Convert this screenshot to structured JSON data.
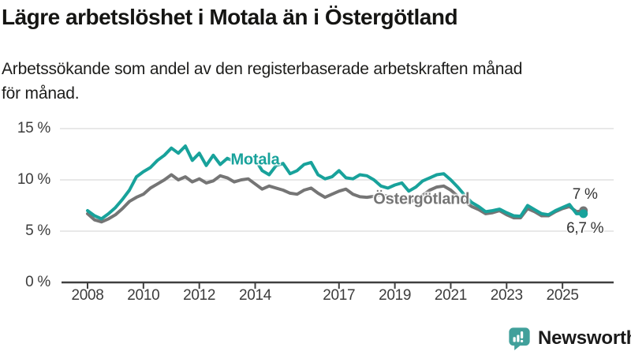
{
  "header": {
    "title": "Lägre arbetslöshet i Motala än i Östergötland",
    "subtitle_lines": [
      "Arbetssökande som andel av den registerbaserade arbetskraften månad",
      "för månad."
    ]
  },
  "footer": {
    "brand": "Newsworthy",
    "brand_color": "#41A09B",
    "logo_icon": "bar-chart-speech-bubble-icon"
  },
  "colors": {
    "motala": "#18A29B",
    "ostergotland": "#757575",
    "grid": "#D9D9D9",
    "axis": "#3F3F3F",
    "tick_text": "#3C3C3C",
    "annotation_text": "#333333"
  },
  "chart_data": {
    "type": "line",
    "title": "Lägre arbetslöshet i Motala än i Östergötland",
    "subtitle": "Arbetssökande som andel av den registerbaserade arbetskraften månad för månad.",
    "xlabel": "",
    "ylabel": "",
    "ylim": [
      0,
      15
    ],
    "xlim": [
      2007.7,
      2026.3
    ],
    "grid": "horizontal",
    "legend_position": "inline-labels",
    "x_ticks": [
      2008,
      2010,
      2012,
      2014,
      2017,
      2019,
      2021,
      2023,
      2025
    ],
    "y_ticks": [
      {
        "value": 0,
        "label": "0 %"
      },
      {
        "value": 5,
        "label": "5 %"
      },
      {
        "value": 10,
        "label": "10 %"
      },
      {
        "value": 15,
        "label": "15 %"
      }
    ],
    "series": [
      {
        "name": "Motala",
        "color": "#18A29B",
        "end_value": 6.7,
        "end_label": "6,7 %",
        "points": [
          [
            2008.0,
            7.0
          ],
          [
            2008.25,
            6.5
          ],
          [
            2008.5,
            6.2
          ],
          [
            2008.75,
            6.7
          ],
          [
            2009.0,
            7.3
          ],
          [
            2009.25,
            8.1
          ],
          [
            2009.5,
            9.0
          ],
          [
            2009.75,
            10.3
          ],
          [
            2010.0,
            10.8
          ],
          [
            2010.25,
            11.2
          ],
          [
            2010.5,
            11.9
          ],
          [
            2010.75,
            12.4
          ],
          [
            2011.0,
            13.1
          ],
          [
            2011.25,
            12.6
          ],
          [
            2011.5,
            13.3
          ],
          [
            2011.75,
            11.9
          ],
          [
            2012.0,
            12.6
          ],
          [
            2012.25,
            11.4
          ],
          [
            2012.5,
            12.4
          ],
          [
            2012.75,
            11.5
          ],
          [
            2013.0,
            12.1
          ],
          [
            2013.25,
            11.8
          ],
          [
            2013.5,
            12.3
          ],
          [
            2013.75,
            11.7
          ],
          [
            2014.0,
            12.0
          ],
          [
            2014.25,
            10.9
          ],
          [
            2014.5,
            10.5
          ],
          [
            2014.75,
            11.4
          ],
          [
            2015.0,
            11.6
          ],
          [
            2015.25,
            10.6
          ],
          [
            2015.5,
            10.9
          ],
          [
            2015.75,
            11.5
          ],
          [
            2016.0,
            11.7
          ],
          [
            2016.25,
            10.5
          ],
          [
            2016.5,
            10.1
          ],
          [
            2016.75,
            10.3
          ],
          [
            2017.0,
            10.9
          ],
          [
            2017.25,
            10.2
          ],
          [
            2017.5,
            10.1
          ],
          [
            2017.75,
            10.5
          ],
          [
            2018.0,
            10.4
          ],
          [
            2018.25,
            10.0
          ],
          [
            2018.5,
            9.4
          ],
          [
            2018.75,
            9.2
          ],
          [
            2019.0,
            9.5
          ],
          [
            2019.25,
            9.7
          ],
          [
            2019.5,
            8.9
          ],
          [
            2019.75,
            9.3
          ],
          [
            2020.0,
            9.9
          ],
          [
            2020.25,
            10.2
          ],
          [
            2020.5,
            10.5
          ],
          [
            2020.75,
            10.6
          ],
          [
            2021.0,
            10.0
          ],
          [
            2021.25,
            9.3
          ],
          [
            2021.5,
            8.5
          ],
          [
            2021.75,
            7.8
          ],
          [
            2022.0,
            7.4
          ],
          [
            2022.25,
            6.9
          ],
          [
            2022.5,
            7.0
          ],
          [
            2022.75,
            7.15
          ],
          [
            2023.0,
            6.8
          ],
          [
            2023.25,
            6.5
          ],
          [
            2023.5,
            6.45
          ],
          [
            2023.75,
            7.5
          ],
          [
            2024.0,
            7.1
          ],
          [
            2024.25,
            6.7
          ],
          [
            2024.5,
            6.6
          ],
          [
            2024.75,
            7.0
          ],
          [
            2025.0,
            7.3
          ],
          [
            2025.25,
            7.6
          ],
          [
            2025.5,
            6.7
          ],
          [
            2025.75,
            6.7
          ]
        ]
      },
      {
        "name": "Östergötland",
        "color": "#757575",
        "end_value": 7.0,
        "end_label": "7 %",
        "points": [
          [
            2008.0,
            6.7
          ],
          [
            2008.25,
            6.1
          ],
          [
            2008.5,
            5.9
          ],
          [
            2008.75,
            6.2
          ],
          [
            2009.0,
            6.6
          ],
          [
            2009.25,
            7.2
          ],
          [
            2009.5,
            7.9
          ],
          [
            2009.75,
            8.3
          ],
          [
            2010.0,
            8.6
          ],
          [
            2010.25,
            9.2
          ],
          [
            2010.5,
            9.6
          ],
          [
            2010.75,
            10.0
          ],
          [
            2011.0,
            10.5
          ],
          [
            2011.25,
            10.0
          ],
          [
            2011.5,
            10.3
          ],
          [
            2011.75,
            9.8
          ],
          [
            2012.0,
            10.1
          ],
          [
            2012.25,
            9.7
          ],
          [
            2012.5,
            9.9
          ],
          [
            2012.75,
            10.4
          ],
          [
            2013.0,
            10.2
          ],
          [
            2013.25,
            9.8
          ],
          [
            2013.5,
            10.0
          ],
          [
            2013.75,
            10.1
          ],
          [
            2014.0,
            9.6
          ],
          [
            2014.25,
            9.1
          ],
          [
            2014.5,
            9.4
          ],
          [
            2014.75,
            9.2
          ],
          [
            2015.0,
            9.0
          ],
          [
            2015.25,
            8.7
          ],
          [
            2015.5,
            8.6
          ],
          [
            2015.75,
            9.0
          ],
          [
            2016.0,
            9.2
          ],
          [
            2016.25,
            8.7
          ],
          [
            2016.5,
            8.3
          ],
          [
            2016.75,
            8.6
          ],
          [
            2017.0,
            8.9
          ],
          [
            2017.25,
            9.1
          ],
          [
            2017.5,
            8.6
          ],
          [
            2017.75,
            8.35
          ],
          [
            2018.0,
            8.3
          ],
          [
            2018.25,
            8.4
          ],
          [
            2018.5,
            8.55
          ],
          [
            2018.75,
            8.4
          ],
          [
            2019.0,
            8.2
          ],
          [
            2019.25,
            7.9
          ],
          [
            2019.5,
            7.8
          ],
          [
            2019.75,
            8.1
          ],
          [
            2020.0,
            8.5
          ],
          [
            2020.25,
            9.0
          ],
          [
            2020.5,
            9.3
          ],
          [
            2020.75,
            9.4
          ],
          [
            2021.0,
            9.0
          ],
          [
            2021.25,
            8.4
          ],
          [
            2021.5,
            7.9
          ],
          [
            2021.75,
            7.4
          ],
          [
            2022.0,
            7.1
          ],
          [
            2022.25,
            6.7
          ],
          [
            2022.5,
            6.8
          ],
          [
            2022.75,
            7.0
          ],
          [
            2023.0,
            6.6
          ],
          [
            2023.25,
            6.3
          ],
          [
            2023.5,
            6.3
          ],
          [
            2023.75,
            7.2
          ],
          [
            2024.0,
            6.9
          ],
          [
            2024.25,
            6.5
          ],
          [
            2024.5,
            6.5
          ],
          [
            2024.75,
            6.9
          ],
          [
            2025.0,
            7.2
          ],
          [
            2025.25,
            7.4
          ],
          [
            2025.5,
            6.9
          ],
          [
            2025.75,
            7.0
          ]
        ]
      }
    ],
    "series_labels": [
      {
        "text": "Motala",
        "x": 2014.0,
        "y": 11.9,
        "color": "#18A29B"
      },
      {
        "text": "Östergötland",
        "x": 2019.95,
        "y": 8.1,
        "color": "#757575"
      }
    ]
  }
}
